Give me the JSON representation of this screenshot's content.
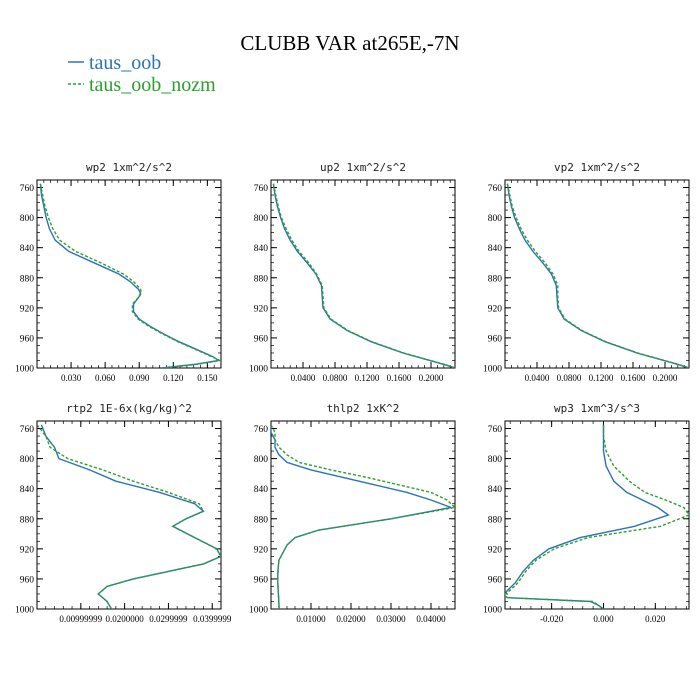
{
  "title": "CLUBB VAR at265E,-7N",
  "legend": [
    {
      "label": "taus_oob",
      "color": "#2a73b5",
      "dash": false
    },
    {
      "label": "taus_oob_nozm",
      "color": "#2ca02c",
      "dash": true
    }
  ],
  "chart_data": [
    {
      "type": "line",
      "title": "wp2  1xm^2/s^2",
      "xlim": [
        0,
        0.162
      ],
      "ylim": [
        1000,
        750
      ],
      "yticks": [
        760,
        800,
        840,
        880,
        920,
        960,
        1000
      ],
      "xticks": [
        0.03,
        0.06,
        0.09,
        0.12,
        0.15
      ],
      "xtick_labels": [
        "0.030",
        "0.060",
        "0.090",
        "0.120",
        "0.150"
      ],
      "y": [
        755,
        770,
        785,
        800,
        815,
        830,
        845,
        860,
        875,
        885,
        895,
        900,
        905,
        915,
        925,
        935,
        945,
        955,
        965,
        975,
        985,
        990,
        995,
        1000
      ],
      "series": [
        {
          "name": "taus_oob",
          "x": [
            0.003,
            0.004,
            0.006,
            0.008,
            0.011,
            0.016,
            0.028,
            0.05,
            0.072,
            0.082,
            0.089,
            0.091,
            0.09,
            0.085,
            0.085,
            0.09,
            0.1,
            0.112,
            0.125,
            0.14,
            0.155,
            0.16,
            0.14,
            0.11
          ]
        },
        {
          "name": "taus_oob_nozm",
          "x": [
            0.003,
            0.005,
            0.007,
            0.01,
            0.014,
            0.02,
            0.034,
            0.056,
            0.076,
            0.085,
            0.091,
            0.092,
            0.09,
            0.084,
            0.084,
            0.089,
            0.099,
            0.111,
            0.124,
            0.139,
            0.154,
            0.161,
            0.142,
            0.112
          ]
        }
      ]
    },
    {
      "type": "line",
      "title": "up2  1xm^2/s^2",
      "xlim": [
        0,
        0.23
      ],
      "ylim": [
        1000,
        750
      ],
      "yticks": [
        760,
        800,
        840,
        880,
        920,
        960,
        1000
      ],
      "xticks": [
        0.04,
        0.08,
        0.12,
        0.16,
        0.2
      ],
      "xtick_labels": [
        "0.0400",
        "0.0800",
        "0.1200",
        "0.1600",
        "0.2000"
      ],
      "y": [
        755,
        770,
        785,
        800,
        815,
        830,
        845,
        860,
        875,
        890,
        905,
        920,
        935,
        950,
        965,
        980,
        995,
        1000
      ],
      "series": [
        {
          "name": "taus_oob",
          "x": [
            0.003,
            0.005,
            0.008,
            0.012,
            0.017,
            0.024,
            0.033,
            0.045,
            0.056,
            0.063,
            0.064,
            0.065,
            0.074,
            0.095,
            0.125,
            0.165,
            0.215,
            0.23
          ]
        },
        {
          "name": "taus_oob_nozm",
          "x": [
            0.003,
            0.006,
            0.009,
            0.013,
            0.019,
            0.026,
            0.035,
            0.047,
            0.057,
            0.064,
            0.065,
            0.066,
            0.075,
            0.096,
            0.126,
            0.166,
            0.216,
            0.231
          ]
        }
      ]
    },
    {
      "type": "line",
      "title": "vp2  1xm^2/s^2",
      "xlim": [
        0,
        0.23
      ],
      "ylim": [
        1000,
        750
      ],
      "yticks": [
        760,
        800,
        840,
        880,
        920,
        960,
        1000
      ],
      "xticks": [
        0.04,
        0.08,
        0.12,
        0.16,
        0.2
      ],
      "xtick_labels": [
        "0.0400",
        "0.0800",
        "0.1200",
        "0.1600",
        "0.2000"
      ],
      "y": [
        755,
        770,
        785,
        800,
        815,
        830,
        845,
        860,
        875,
        890,
        905,
        920,
        935,
        950,
        965,
        980,
        995,
        1000
      ],
      "series": [
        {
          "name": "taus_oob",
          "x": [
            0.003,
            0.005,
            0.008,
            0.012,
            0.018,
            0.025,
            0.035,
            0.047,
            0.058,
            0.064,
            0.065,
            0.066,
            0.074,
            0.095,
            0.125,
            0.165,
            0.215,
            0.23
          ]
        },
        {
          "name": "taus_oob_nozm",
          "x": [
            0.003,
            0.006,
            0.009,
            0.014,
            0.02,
            0.028,
            0.038,
            0.05,
            0.06,
            0.066,
            0.066,
            0.067,
            0.075,
            0.096,
            0.126,
            0.166,
            0.216,
            0.231
          ]
        }
      ]
    },
    {
      "type": "line",
      "title": "rtp2  1E-6x(kg/kg)^2",
      "xlim": [
        0,
        0.042
      ],
      "ylim": [
        1000,
        750
      ],
      "yticks": [
        760,
        800,
        840,
        880,
        920,
        960,
        1000
      ],
      "xticks": [
        0.01,
        0.02,
        0.03,
        0.04
      ],
      "xtick_labels": [
        "0.00999999",
        "0.0200000",
        "0.0299999",
        "0.0399999"
      ],
      "y": [
        755,
        770,
        785,
        800,
        815,
        830,
        845,
        860,
        870,
        880,
        890,
        905,
        920,
        930,
        940,
        950,
        960,
        970,
        980,
        990,
        1000
      ],
      "series": [
        {
          "name": "taus_oob",
          "x": [
            0.001,
            0.002,
            0.004,
            0.005,
            0.012,
            0.018,
            0.028,
            0.036,
            0.038,
            0.034,
            0.031,
            0.036,
            0.041,
            0.042,
            0.038,
            0.03,
            0.022,
            0.016,
            0.014,
            0.016,
            0.017
          ]
        },
        {
          "name": "taus_oob_nozm",
          "x": [
            0.0,
            0.002,
            0.003,
            0.007,
            0.015,
            0.022,
            0.03,
            0.037,
            0.038,
            0.034,
            0.031,
            0.036,
            0.041,
            0.042,
            0.038,
            0.03,
            0.022,
            0.016,
            0.014,
            0.016,
            0.017
          ]
        }
      ]
    },
    {
      "type": "line",
      "title": "thlp2  1xK^2",
      "xlim": [
        0,
        0.046
      ],
      "ylim": [
        1000,
        750
      ],
      "yticks": [
        760,
        800,
        840,
        880,
        920,
        960,
        1000
      ],
      "xticks": [
        0.01,
        0.02,
        0.03,
        0.04
      ],
      "xtick_labels": [
        "0.01000",
        "0.02000",
        "0.03000",
        "0.04000"
      ],
      "y": [
        755,
        765,
        775,
        785,
        795,
        805,
        815,
        825,
        835,
        845,
        855,
        865,
        880,
        895,
        905,
        915,
        925,
        935,
        945,
        955,
        965,
        975,
        985,
        995,
        1000
      ],
      "series": [
        {
          "name": "taus_oob",
          "x": [
            0.0,
            0.0,
            0.001,
            0.001,
            0.002,
            0.004,
            0.01,
            0.018,
            0.026,
            0.034,
            0.04,
            0.045,
            0.03,
            0.012,
            0.006,
            0.004,
            0.003,
            0.002,
            0.0018,
            0.0017,
            0.0017,
            0.0018,
            0.0019,
            0.002,
            0.002
          ]
        },
        {
          "name": "taus_oob_nozm",
          "x": [
            0.0,
            0.001,
            0.001,
            0.002,
            0.004,
            0.007,
            0.015,
            0.024,
            0.032,
            0.04,
            0.044,
            0.046,
            0.03,
            0.012,
            0.006,
            0.004,
            0.003,
            0.002,
            0.0018,
            0.0017,
            0.0017,
            0.0018,
            0.0019,
            0.002,
            0.002
          ]
        }
      ]
    },
    {
      "type": "line",
      "title": "wp3  1xm^3/s^3",
      "xlim": [
        -0.038,
        0.033
      ],
      "ylim": [
        1000,
        750
      ],
      "yticks": [
        760,
        800,
        840,
        880,
        920,
        960,
        1000
      ],
      "xticks": [
        -0.02,
        0,
        0.02
      ],
      "xtick_labels": [
        "-0.020",
        "0.000",
        "0.020"
      ],
      "y": [
        755,
        770,
        790,
        810,
        830,
        845,
        855,
        865,
        875,
        890,
        905,
        920,
        935,
        950,
        965,
        975,
        980,
        983,
        985,
        990,
        995,
        1000
      ],
      "series": [
        {
          "name": "taus_oob",
          "x": [
            0.0,
            0.0,
            0.0,
            0.001,
            0.004,
            0.009,
            0.015,
            0.021,
            0.025,
            0.012,
            -0.009,
            -0.021,
            -0.027,
            -0.031,
            -0.034,
            -0.037,
            -0.038,
            -0.038,
            -0.037,
            -0.005,
            -0.002,
            0.0
          ]
        },
        {
          "name": "taus_oob_nozm",
          "x": [
            0.0,
            0.0,
            0.001,
            0.004,
            0.01,
            0.016,
            0.024,
            0.031,
            0.033,
            0.022,
            -0.006,
            -0.019,
            -0.026,
            -0.03,
            -0.033,
            -0.036,
            -0.038,
            -0.038,
            -0.037,
            -0.004,
            -0.002,
            0.0
          ]
        }
      ]
    }
  ]
}
